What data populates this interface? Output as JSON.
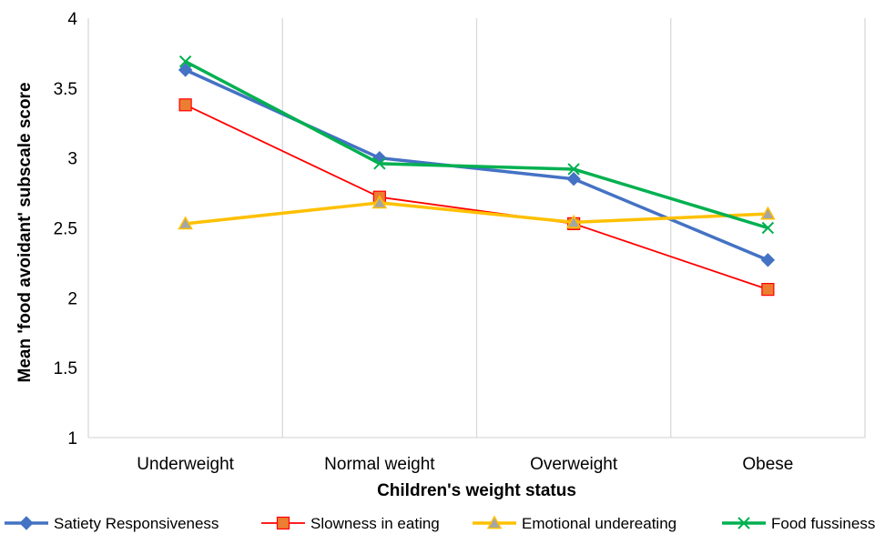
{
  "chart_data": {
    "type": "line",
    "title": "",
    "xlabel": "Children's weight status",
    "ylabel": "Mean 'food avoidant' subscale score",
    "categories": [
      "Underweight",
      "Normal weight",
      "Overweight",
      "Obese"
    ],
    "ylim": [
      1,
      4
    ],
    "yticks": [
      "1",
      "1.5",
      "2",
      "2.5",
      "3",
      "3.5",
      "4"
    ],
    "grid": "vertical",
    "legend_position": "bottom",
    "series": [
      {
        "name": "Satiety Responsiveness",
        "values": [
          3.63,
          3.0,
          2.85,
          2.27
        ],
        "color": "#4472C4",
        "marker": "diamond"
      },
      {
        "name": "Slowness in eating",
        "values": [
          3.38,
          2.72,
          2.53,
          2.06
        ],
        "color": "#FF0000",
        "marker": "square"
      },
      {
        "name": "Emotional undereating",
        "values": [
          2.53,
          2.68,
          2.54,
          2.6
        ],
        "color": "#FFC000",
        "marker": "triangle"
      },
      {
        "name": "Food fussiness",
        "values": [
          3.69,
          2.96,
          2.92,
          2.5
        ],
        "color": "#00B050",
        "marker": "x"
      }
    ]
  }
}
